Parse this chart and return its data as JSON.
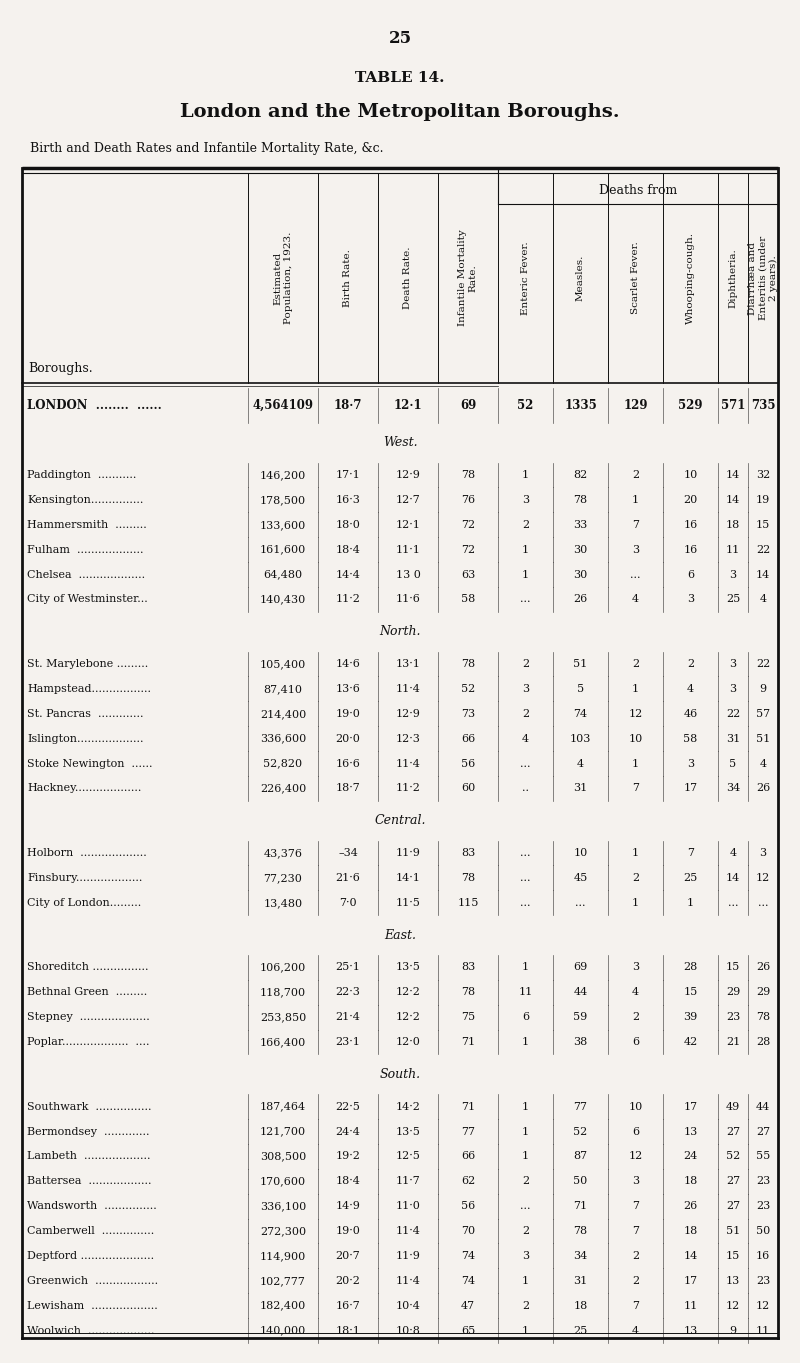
{
  "page_number": "25",
  "table_number": "TABLE 14.",
  "table_title": "London and the Metropolitan Boroughs.",
  "subtitle": "Birth and Death Rates and Infantile Mortality Rate, &c.",
  "deaths_from_label": "Deaths from",
  "sections": [
    {
      "section_name": "",
      "rows": [
        [
          "LONDON  ........  ......",
          "4,564109",
          "18·7",
          "12·1",
          "69",
          "52",
          "1335",
          "129",
          "529",
          "571",
          "735"
        ]
      ]
    },
    {
      "section_name": "West.",
      "rows": [
        [
          "Paddington  ...........",
          "146,200",
          "17·1",
          "12·9",
          "78",
          "1",
          "82",
          "2",
          "10",
          "14",
          "32"
        ],
        [
          "Kensington...............",
          "178,500",
          "16·3",
          "12·7",
          "76",
          "3",
          "78",
          "1",
          "20",
          "14",
          "19"
        ],
        [
          "Hammersmith  .........",
          "133,600",
          "18·0",
          "12·1",
          "72",
          "2",
          "33",
          "7",
          "16",
          "18",
          "15"
        ],
        [
          "Fulham  ...................",
          "161,600",
          "18·4",
          "11·1",
          "72",
          "1",
          "30",
          "3",
          "16",
          "11",
          "22"
        ],
        [
          "Chelsea  ...................",
          "64,480",
          "14·4",
          "13 0",
          "63",
          "1",
          "30",
          "...",
          "6",
          "3",
          "14"
        ],
        [
          "City of Westminster...",
          "140,430",
          "11·2",
          "11·6",
          "58",
          "...",
          "26",
          "4",
          "3",
          "25",
          "4"
        ]
      ]
    },
    {
      "section_name": "North.",
      "rows": [
        [
          "St. Marylebone .........",
          "105,400",
          "14·6",
          "13·1",
          "78",
          "2",
          "51",
          "2",
          "2",
          "3",
          "22"
        ],
        [
          "Hampstead.................",
          "87,410",
          "13·6",
          "11·4",
          "52",
          "3",
          "5",
          "1",
          "4",
          "3",
          "9"
        ],
        [
          "St. Pancras  .............",
          "214,400",
          "19·0",
          "12·9",
          "73",
          "2",
          "74",
          "12",
          "46",
          "22",
          "57"
        ],
        [
          "Islington...................",
          "336,600",
          "20·0",
          "12·3",
          "66",
          "4",
          "103",
          "10",
          "58",
          "31",
          "51"
        ],
        [
          "Stoke Newington  ......",
          "52,820",
          "16·6",
          "11·4",
          "56",
          "...",
          "4",
          "1",
          "3",
          "5",
          "4"
        ],
        [
          "Hackney...................",
          "226,400",
          "18·7",
          "11·2",
          "60",
          "..",
          "31",
          "7",
          "17",
          "34",
          "26"
        ]
      ]
    },
    {
      "section_name": "Central.",
      "rows": [
        [
          "Holborn  ...................",
          "43,376",
          "–34",
          "11·9",
          "83",
          "...",
          "10",
          "1",
          "7",
          "4",
          "3"
        ],
        [
          "Finsbury...................",
          "77,230",
          "21·6",
          "14·1",
          "78",
          "...",
          "45",
          "2",
          "25",
          "14",
          "12"
        ],
        [
          "City of London.........",
          "13,480",
          "7·0",
          "11·5",
          "115",
          "...",
          "...",
          "1",
          "1",
          "...",
          "..."
        ]
      ]
    },
    {
      "section_name": "East.",
      "rows": [
        [
          "Shoreditch ................",
          "106,200",
          "25·1",
          "13·5",
          "83",
          "1",
          "69",
          "3",
          "28",
          "15",
          "26"
        ],
        [
          "Bethnal Green  .........",
          "118,700",
          "22·3",
          "12·2",
          "78",
          "11",
          "44",
          "4",
          "15",
          "29",
          "29"
        ],
        [
          "Stepney  ....................",
          "253,850",
          "21·4",
          "12·2",
          "75",
          "6",
          "59",
          "2",
          "39",
          "23",
          "78"
        ],
        [
          "Poplar...................  ....",
          "166,400",
          "23·1",
          "12·0",
          "71",
          "1",
          "38",
          "6",
          "42",
          "21",
          "28"
        ]
      ]
    },
    {
      "section_name": "South.",
      "rows": [
        [
          "Southwark  ................",
          "187,464",
          "22·5",
          "14·2",
          "71",
          "1",
          "77",
          "10",
          "17",
          "49",
          "44"
        ],
        [
          "Bermondsey  .............",
          "121,700",
          "24·4",
          "13·5",
          "77",
          "1",
          "52",
          "6",
          "13",
          "27",
          "27"
        ],
        [
          "Lambeth  ...................",
          "308,500",
          "19·2",
          "12·5",
          "66",
          "1",
          "87",
          "12",
          "24",
          "52",
          "55"
        ],
        [
          "Battersea  ..................",
          "170,600",
          "18·4",
          "11·7",
          "62",
          "2",
          "50",
          "3",
          "18",
          "27",
          "23"
        ],
        [
          "Wandsworth  ...............",
          "336,100",
          "14·9",
          "11·0",
          "56",
          "...",
          "71",
          "7",
          "26",
          "27",
          "23"
        ],
        [
          "Camberwell  ...............",
          "272,300",
          "19·0",
          "11·4",
          "70",
          "2",
          "78",
          "7",
          "18",
          "51",
          "50"
        ],
        [
          "Deptford .....................",
          "114,900",
          "20·7",
          "11·9",
          "74",
          "3",
          "34",
          "2",
          "14",
          "15",
          "16"
        ],
        [
          "Greenwich  ..................",
          "102,777",
          "20·2",
          "11·4",
          "74",
          "1",
          "31",
          "2",
          "17",
          "13",
          "23"
        ],
        [
          "Lewisham  ...................",
          "182,400",
          "16·7",
          "10·4",
          "47",
          "2",
          "18",
          "7",
          "11",
          "12",
          "12"
        ],
        [
          "Woolwich  ...................",
          "140,000",
          "18·1",
          "10·8",
          "65",
          "1",
          "25",
          "4",
          "13",
          "9",
          "11"
        ]
      ]
    }
  ],
  "bg_color": "#f5f2ee",
  "text_color": "#111111",
  "line_color": "#111111"
}
